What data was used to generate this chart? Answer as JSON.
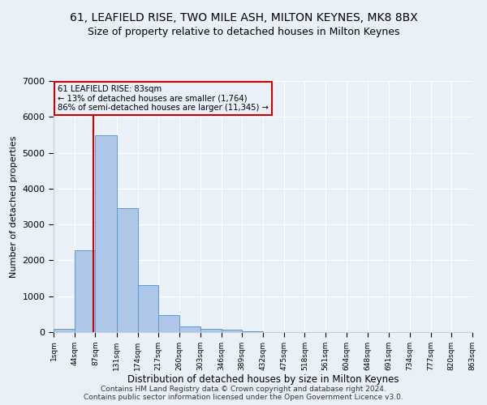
{
  "title": "61, LEAFIELD RISE, TWO MILE ASH, MILTON KEYNES, MK8 8BX",
  "subtitle": "Size of property relative to detached houses in Milton Keynes",
  "xlabel": "Distribution of detached houses by size in Milton Keynes",
  "ylabel": "Number of detached properties",
  "footer_line1": "Contains HM Land Registry data © Crown copyright and database right 2024.",
  "footer_line2": "Contains public sector information licensed under the Open Government Licence v3.0.",
  "bin_edges": [
    1,
    44,
    87,
    131,
    174,
    217,
    260,
    303,
    346,
    389,
    432,
    475,
    518,
    561,
    604,
    648,
    691,
    734,
    777,
    820,
    863
  ],
  "bar_heights": [
    100,
    2280,
    5480,
    3450,
    1320,
    480,
    160,
    100,
    60,
    30,
    10,
    5,
    3,
    2,
    1,
    1,
    0,
    0,
    0,
    0
  ],
  "bar_color": "#aec6e8",
  "bar_edgecolor": "#5b9bd5",
  "vline_x": 83,
  "vline_color": "#cc0000",
  "annotation_line1": "61 LEAFIELD RISE: 83sqm",
  "annotation_line2": "← 13% of detached houses are smaller (1,764)",
  "annotation_line3": "86% of semi-detached houses are larger (11,345) →",
  "annotation_box_color": "#cc0000",
  "annotation_text_color": "#000000",
  "ylim": [
    0,
    7000
  ],
  "yticks": [
    0,
    1000,
    2000,
    3000,
    4000,
    5000,
    6000,
    7000
  ],
  "bg_color": "#eaf0f8",
  "grid_color": "#ffffff",
  "title_fontsize": 10,
  "subtitle_fontsize": 9,
  "footer_fontsize": 6.5,
  "ylabel_fontsize": 8,
  "xlabel_fontsize": 8.5
}
